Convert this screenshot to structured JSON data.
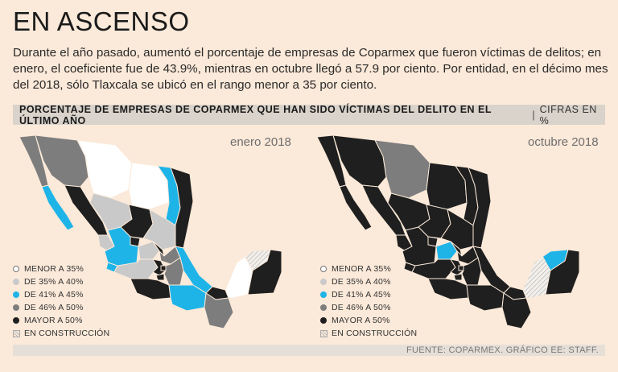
{
  "title": "EN ASCENSO",
  "intro": "Durante el año pasado, aumentó el porcentaje de empresas de Coparmex que fueron víctimas de delitos; en enero, el coeficiente fue de 43.9%, mientras en octubre llegó a 57.9 por ciento. Por entidad, en el décimo mes del 2018, sólo Tlaxcala se ubicó en el rango menor a 35 por ciento.",
  "band": {
    "heading": "PORCENTAJE DE EMPRESAS DE COPARMEX QUE HAN SIDO VÍCTIMAS DEL DELITO EN EL ÚLTIMO AÑO",
    "separator": "|",
    "units": "CIFRAS EN %"
  },
  "colors": {
    "background": "#fbe9d9",
    "menor_35": "#ffffff",
    "de_35_40": "#c9c9c9",
    "de_41_45": "#1eb4e8",
    "de_46_50": "#7d7d7d",
    "mayor_50": "#1f1f1f",
    "construccion": "hatched"
  },
  "legend": [
    {
      "label": "MENOR A 35%",
      "key": "menor_35"
    },
    {
      "label": "DE 35% A 40%",
      "key": "de_35_40"
    },
    {
      "label": "DE 41% A 45%",
      "key": "de_41_45"
    },
    {
      "label": "DE 46% A 50%",
      "key": "de_46_50"
    },
    {
      "label": "MAYOR A 50%",
      "key": "mayor_50"
    },
    {
      "label": "EN CONSTRUCCIÓN",
      "key": "construccion"
    }
  ],
  "maps": [
    {
      "label": "enero 2018",
      "states": {
        "Baja California": "de_46_50",
        "Baja California Sur": "de_41_45",
        "Sonora": "de_46_50",
        "Chihuahua": "menor_35",
        "Coahuila": "menor_35",
        "Nuevo León": "de_41_45",
        "Tamaulipas": "mayor_50",
        "Sinaloa": "mayor_50",
        "Durango": "de_35_40",
        "Zacatecas": "mayor_50",
        "San Luis Potosí": "de_35_40",
        "Nayarit": "de_35_40",
        "Aguascalientes": "mayor_50",
        "Jalisco": "de_41_45",
        "Guanajuato": "de_35_40",
        "Querétaro": "mayor_50",
        "Hidalgo": "de_46_50",
        "Veracruz": "de_41_45",
        "Colima": "de_41_45",
        "Michoacán": "de_35_40",
        "México": "mayor_50",
        "Ciudad de México": "mayor_50",
        "Morelos": "mayor_50",
        "Tlaxcala": "de_46_50",
        "Puebla": "de_46_50",
        "Guerrero": "mayor_50",
        "Oaxaca": "de_41_45",
        "Tabasco": "mayor_50",
        "Chiapas": "de_46_50",
        "Campeche": "menor_35",
        "Yucatán": "construccion",
        "Quintana Roo": "mayor_50"
      }
    },
    {
      "label": "octubre 2018",
      "states": {
        "Baja California": "mayor_50",
        "Baja California Sur": "mayor_50",
        "Sonora": "mayor_50",
        "Chihuahua": "de_46_50",
        "Coahuila": "mayor_50",
        "Nuevo León": "mayor_50",
        "Tamaulipas": "mayor_50",
        "Sinaloa": "mayor_50",
        "Durango": "mayor_50",
        "Zacatecas": "mayor_50",
        "San Luis Potosí": "mayor_50",
        "Nayarit": "mayor_50",
        "Aguascalientes": "mayor_50",
        "Jalisco": "mayor_50",
        "Guanajuato": "de_41_45",
        "Querétaro": "mayor_50",
        "Hidalgo": "mayor_50",
        "Veracruz": "mayor_50",
        "Colima": "mayor_50",
        "Michoacán": "mayor_50",
        "México": "mayor_50",
        "Ciudad de México": "mayor_50",
        "Morelos": "mayor_50",
        "Tlaxcala": "menor_35",
        "Puebla": "mayor_50",
        "Guerrero": "mayor_50",
        "Oaxaca": "mayor_50",
        "Tabasco": "mayor_50",
        "Chiapas": "mayor_50",
        "Campeche": "construccion",
        "Yucatán": "de_41_45",
        "Quintana Roo": "mayor_50"
      }
    }
  ],
  "footer": "FUENTE: COPARMEX. GRÁFICO EE: STAFF."
}
